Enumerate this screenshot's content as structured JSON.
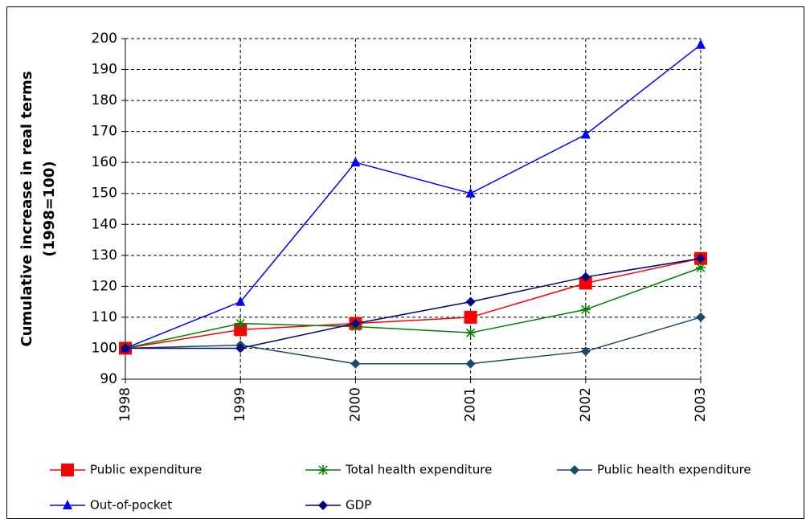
{
  "chart_data": {
    "type": "line",
    "ylabel": [
      "Cumulative increase in real terms",
      "(1998=100)"
    ],
    "x": [
      1998,
      1999,
      2000,
      2001,
      2002,
      2003
    ],
    "xlim": [
      1998,
      2003
    ],
    "xticks": [
      1998,
      1999,
      2000,
      2001,
      2002,
      2003
    ],
    "ylim": [
      90,
      200
    ],
    "yticks": [
      90,
      100,
      110,
      120,
      130,
      140,
      150,
      160,
      170,
      180,
      190,
      200
    ],
    "grid": true,
    "legend": "bottom",
    "series": [
      {
        "name": "Public expenditure",
        "color": "#ff0000",
        "marker": "square",
        "values": [
          100,
          106,
          108,
          110,
          121,
          129
        ]
      },
      {
        "name": "Total health expenditure",
        "color": "#008000",
        "marker": "star",
        "values": [
          100,
          108,
          107,
          105,
          112.5,
          126
        ]
      },
      {
        "name": "Public health expenditure",
        "color": "#1a4a6b",
        "marker": "diamond",
        "values": [
          100,
          101,
          95,
          95,
          99,
          110
        ]
      },
      {
        "name": "Out-of-pocket",
        "color": "#0000ff",
        "marker": "triangle",
        "values": [
          100,
          115,
          160,
          150,
          169,
          198
        ]
      },
      {
        "name": "GDP",
        "color": "#000080",
        "marker": "diamond",
        "values": [
          100,
          100,
          108,
          115,
          123,
          129
        ]
      }
    ]
  }
}
